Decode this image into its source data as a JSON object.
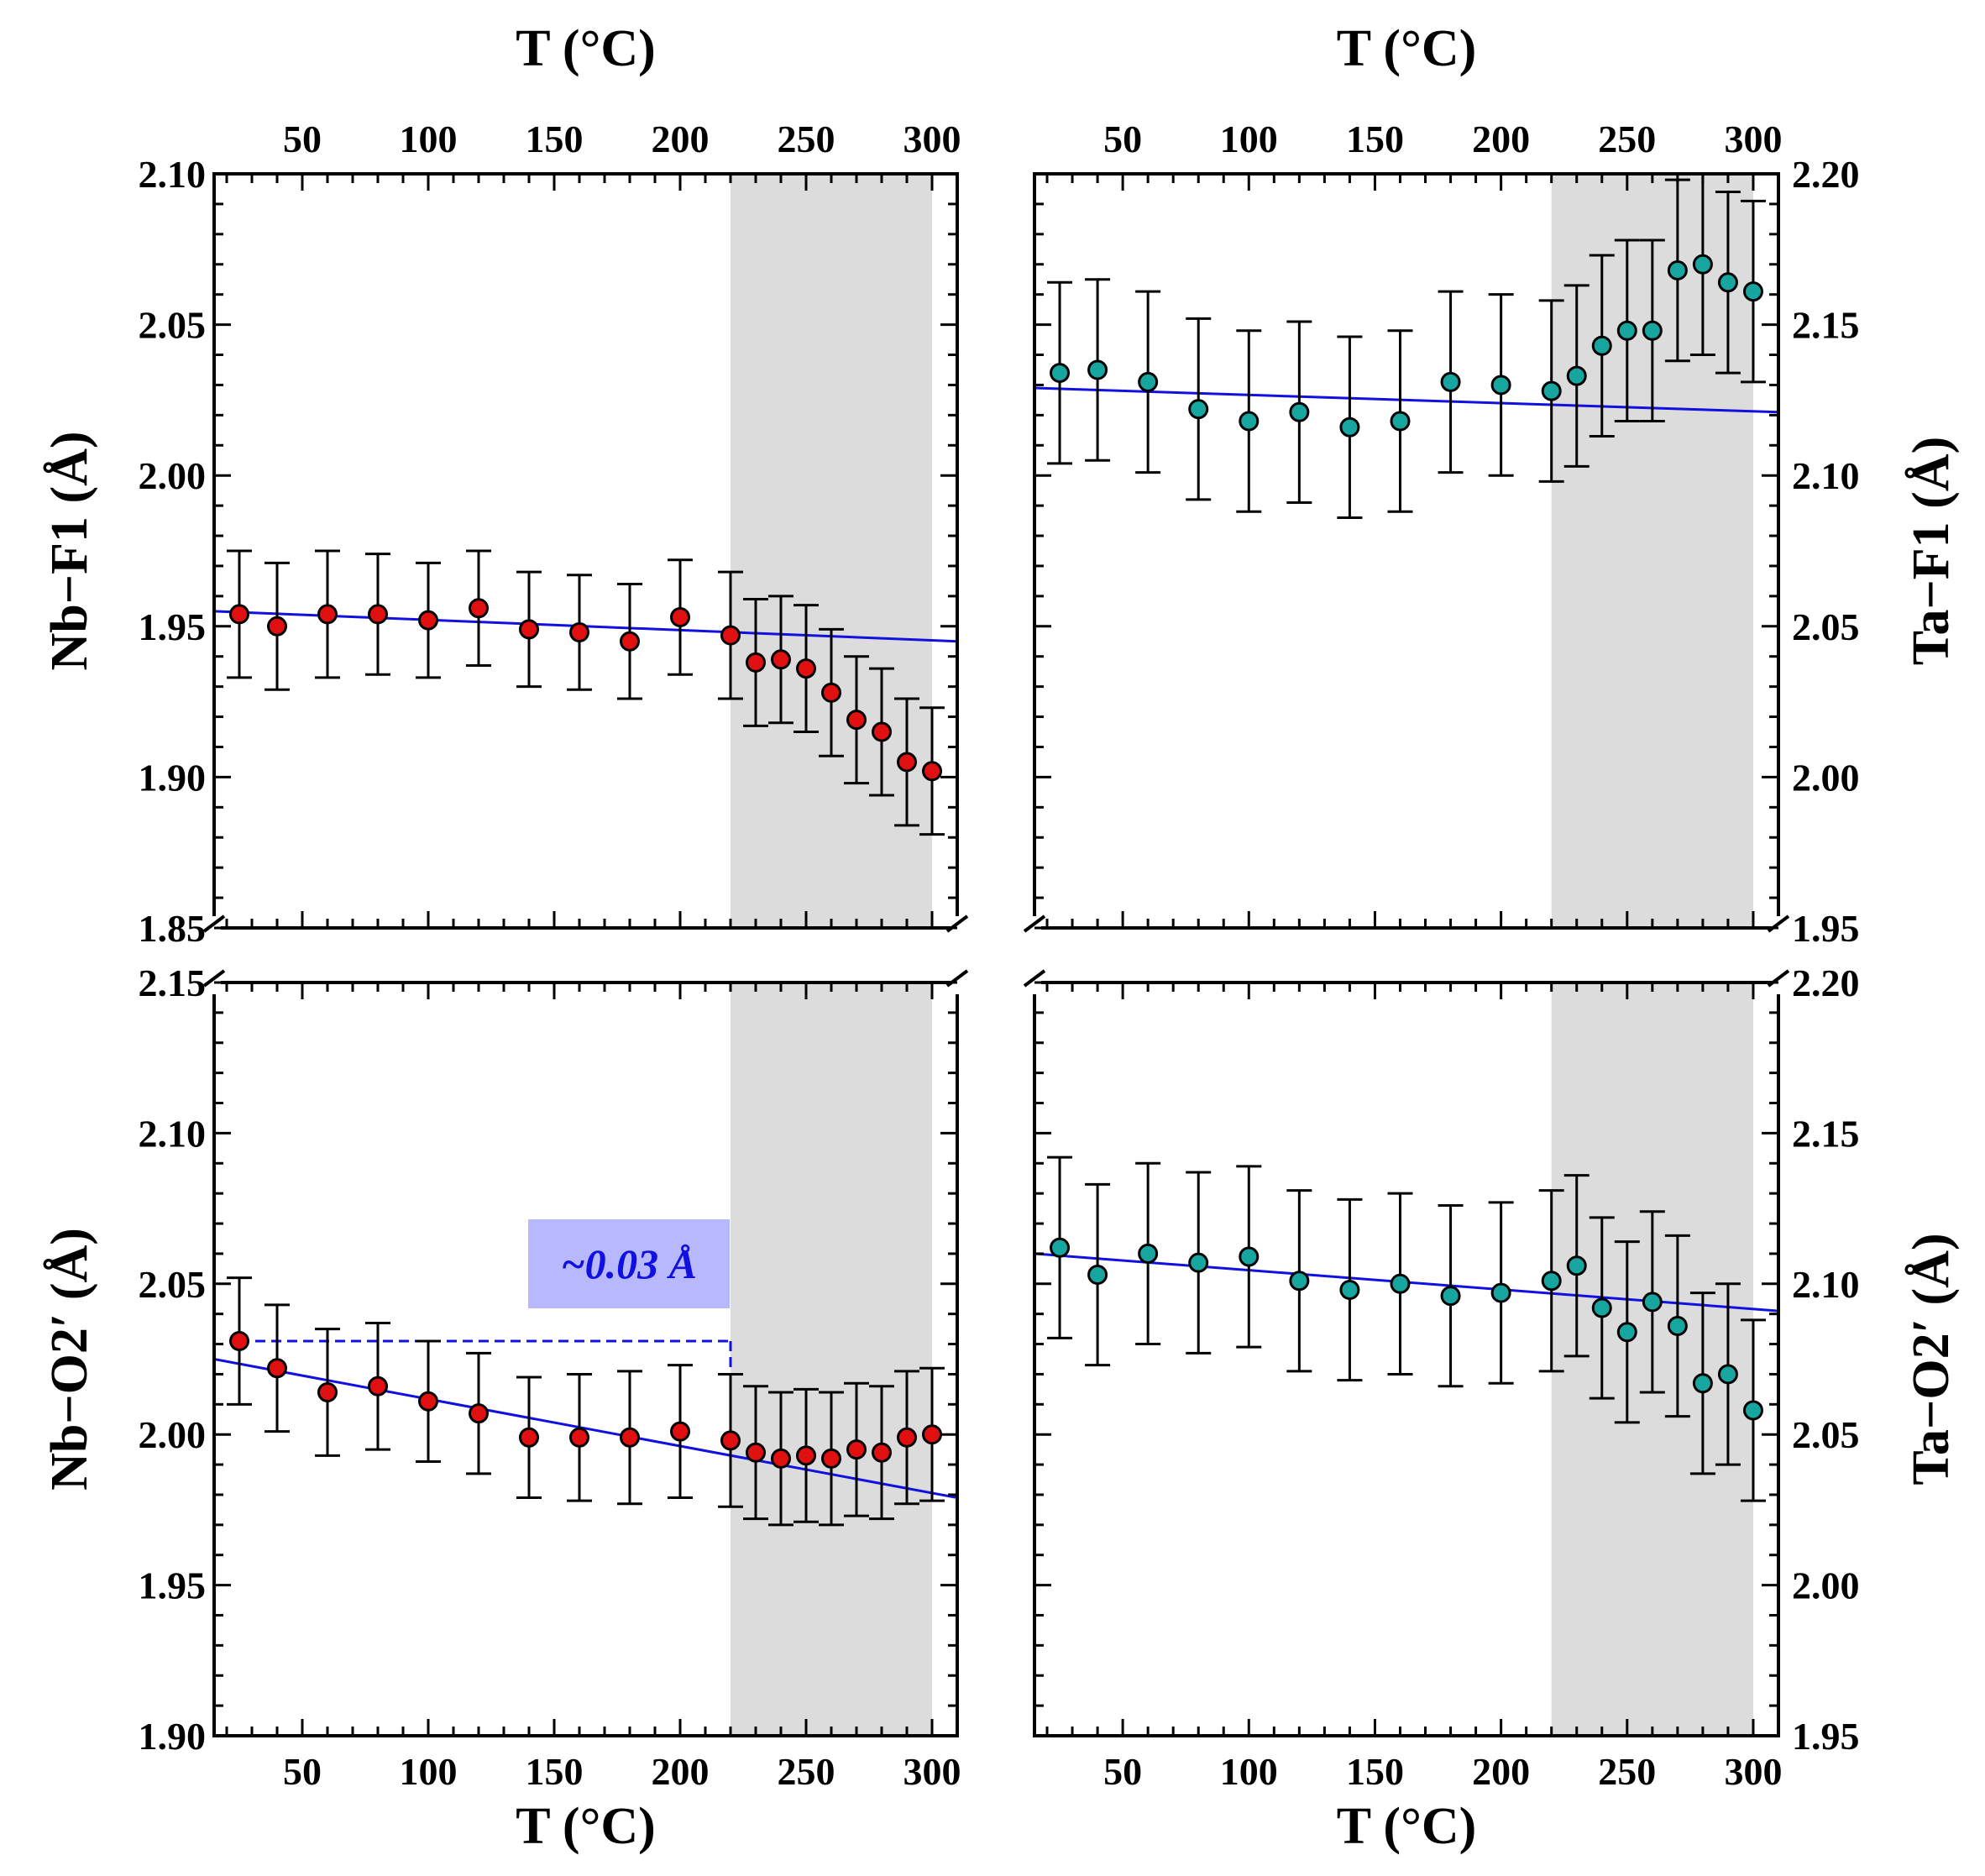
{
  "colors": {
    "nb_marker": "#e01010",
    "ta_marker": "#17a5a0",
    "fit_line": "#1010e0",
    "shade": "#dcdcdc",
    "annotation_bg": "#b8b8ff",
    "annotation_text": "#1010e0",
    "errorbar": "#000000"
  },
  "chart_data": [
    {
      "id": "nb_f1",
      "type": "scatter",
      "ylabel": "Nb−F1 (Å)",
      "xlabel_top": "T (°C)",
      "xlim": [
        15,
        310
      ],
      "ylim": [
        1.85,
        2.1
      ],
      "yticks": [
        "1.85",
        "1.90",
        "1.95",
        "2.00",
        "2.05",
        "2.10"
      ],
      "xticks": [
        "50",
        "100",
        "150",
        "200",
        "250",
        "300"
      ],
      "shaded_x": [
        220,
        300
      ],
      "series": [
        {
          "x": [
            25,
            40,
            60,
            80,
            100,
            120,
            140,
            160,
            180,
            200,
            220,
            230,
            240,
            250,
            260,
            270,
            280,
            290,
            300
          ],
          "y": [
            1.954,
            1.95,
            1.954,
            1.954,
            1.952,
            1.956,
            1.949,
            1.948,
            1.945,
            1.953,
            1.947,
            1.938,
            1.939,
            1.936,
            1.928,
            1.919,
            1.915,
            1.905,
            1.902
          ],
          "err": [
            0.021,
            0.021,
            0.021,
            0.02,
            0.019,
            0.019,
            0.019,
            0.019,
            0.019,
            0.019,
            0.021,
            0.021,
            0.021,
            0.021,
            0.021,
            0.021,
            0.021,
            0.021,
            0.021
          ]
        }
      ],
      "fit": {
        "x": [
          15,
          310
        ],
        "y": [
          1.955,
          1.945
        ]
      }
    },
    {
      "id": "ta_f1",
      "type": "scatter",
      "ylabel": "Ta−F1 (Å)",
      "xlabel_top": "T (°C)",
      "xlim": [
        15,
        310
      ],
      "ylim": [
        1.95,
        2.2
      ],
      "yticks": [
        "1.95",
        "2.00",
        "2.05",
        "2.10",
        "2.15",
        "2.20"
      ],
      "xticks": [
        "50",
        "100",
        "150",
        "200",
        "250",
        "300"
      ],
      "shaded_x": [
        220,
        300
      ],
      "series": [
        {
          "x": [
            25,
            40,
            60,
            80,
            100,
            120,
            140,
            160,
            180,
            200,
            220,
            230,
            240,
            250,
            260,
            270,
            280,
            290,
            300
          ],
          "y": [
            2.134,
            2.135,
            2.131,
            2.122,
            2.118,
            2.121,
            2.116,
            2.118,
            2.131,
            2.13,
            2.128,
            2.133,
            2.143,
            2.148,
            2.148,
            2.168,
            2.17,
            2.164,
            2.161
          ],
          "err": [
            0.03,
            0.03,
            0.03,
            0.03,
            0.03,
            0.03,
            0.03,
            0.03,
            0.03,
            0.03,
            0.03,
            0.03,
            0.03,
            0.03,
            0.03,
            0.03,
            0.03,
            0.03,
            0.03
          ]
        }
      ],
      "fit": {
        "x": [
          15,
          310
        ],
        "y": [
          2.129,
          2.121
        ]
      }
    },
    {
      "id": "nb_o2",
      "type": "scatter",
      "ylabel": "Nb−O2′ (Å)",
      "xlabel": "T (°C)",
      "xlim": [
        15,
        310
      ],
      "ylim": [
        1.9,
        2.15
      ],
      "yticks": [
        "1.90",
        "1.95",
        "2.00",
        "2.05",
        "2.10",
        "2.15"
      ],
      "xticks": [
        "50",
        "100",
        "150",
        "200",
        "250",
        "300"
      ],
      "shaded_x": [
        220,
        300
      ],
      "series": [
        {
          "x": [
            25,
            40,
            60,
            80,
            100,
            120,
            140,
            160,
            180,
            200,
            220,
            230,
            240,
            250,
            260,
            270,
            280,
            290,
            300
          ],
          "y": [
            2.031,
            2.022,
            2.014,
            2.016,
            2.011,
            2.007,
            1.999,
            1.999,
            1.999,
            2.001,
            1.998,
            1.994,
            1.992,
            1.993,
            1.992,
            1.995,
            1.994,
            1.999,
            2.0
          ],
          "err": [
            0.021,
            0.021,
            0.021,
            0.021,
            0.02,
            0.02,
            0.02,
            0.021,
            0.022,
            0.022,
            0.022,
            0.022,
            0.022,
            0.022,
            0.022,
            0.022,
            0.022,
            0.022,
            0.022
          ]
        }
      ],
      "fit": {
        "x": [
          15,
          310
        ],
        "y": [
          2.025,
          1.979
        ]
      },
      "annotation": {
        "text": "~0.03 Å",
        "dashed_level_y": 2.031,
        "dashed_x": [
          25,
          220
        ],
        "drop_to_y": 1.998
      }
    },
    {
      "id": "ta_o2",
      "type": "scatter",
      "ylabel": "Ta−O2′ (Å)",
      "xlabel": "T (°C)",
      "xlim": [
        15,
        310
      ],
      "ylim": [
        1.95,
        2.2
      ],
      "yticks": [
        "1.95",
        "2.00",
        "2.05",
        "2.10",
        "2.15",
        "2.20"
      ],
      "xticks": [
        "50",
        "100",
        "150",
        "200",
        "250",
        "300"
      ],
      "shaded_x": [
        220,
        300
      ],
      "series": [
        {
          "x": [
            25,
            40,
            60,
            80,
            100,
            120,
            140,
            160,
            180,
            200,
            220,
            230,
            240,
            250,
            260,
            270,
            280,
            290,
            300
          ],
          "y": [
            2.112,
            2.103,
            2.11,
            2.107,
            2.109,
            2.101,
            2.098,
            2.1,
            2.096,
            2.097,
            2.101,
            2.106,
            2.092,
            2.084,
            2.094,
            2.086,
            2.067,
            2.07,
            2.058
          ],
          "err": [
            0.03,
            0.03,
            0.03,
            0.03,
            0.03,
            0.03,
            0.03,
            0.03,
            0.03,
            0.03,
            0.03,
            0.03,
            0.03,
            0.03,
            0.03,
            0.03,
            0.03,
            0.03,
            0.03
          ]
        }
      ],
      "fit": {
        "x": [
          15,
          310
        ],
        "y": [
          2.11,
          2.091
        ]
      }
    }
  ]
}
